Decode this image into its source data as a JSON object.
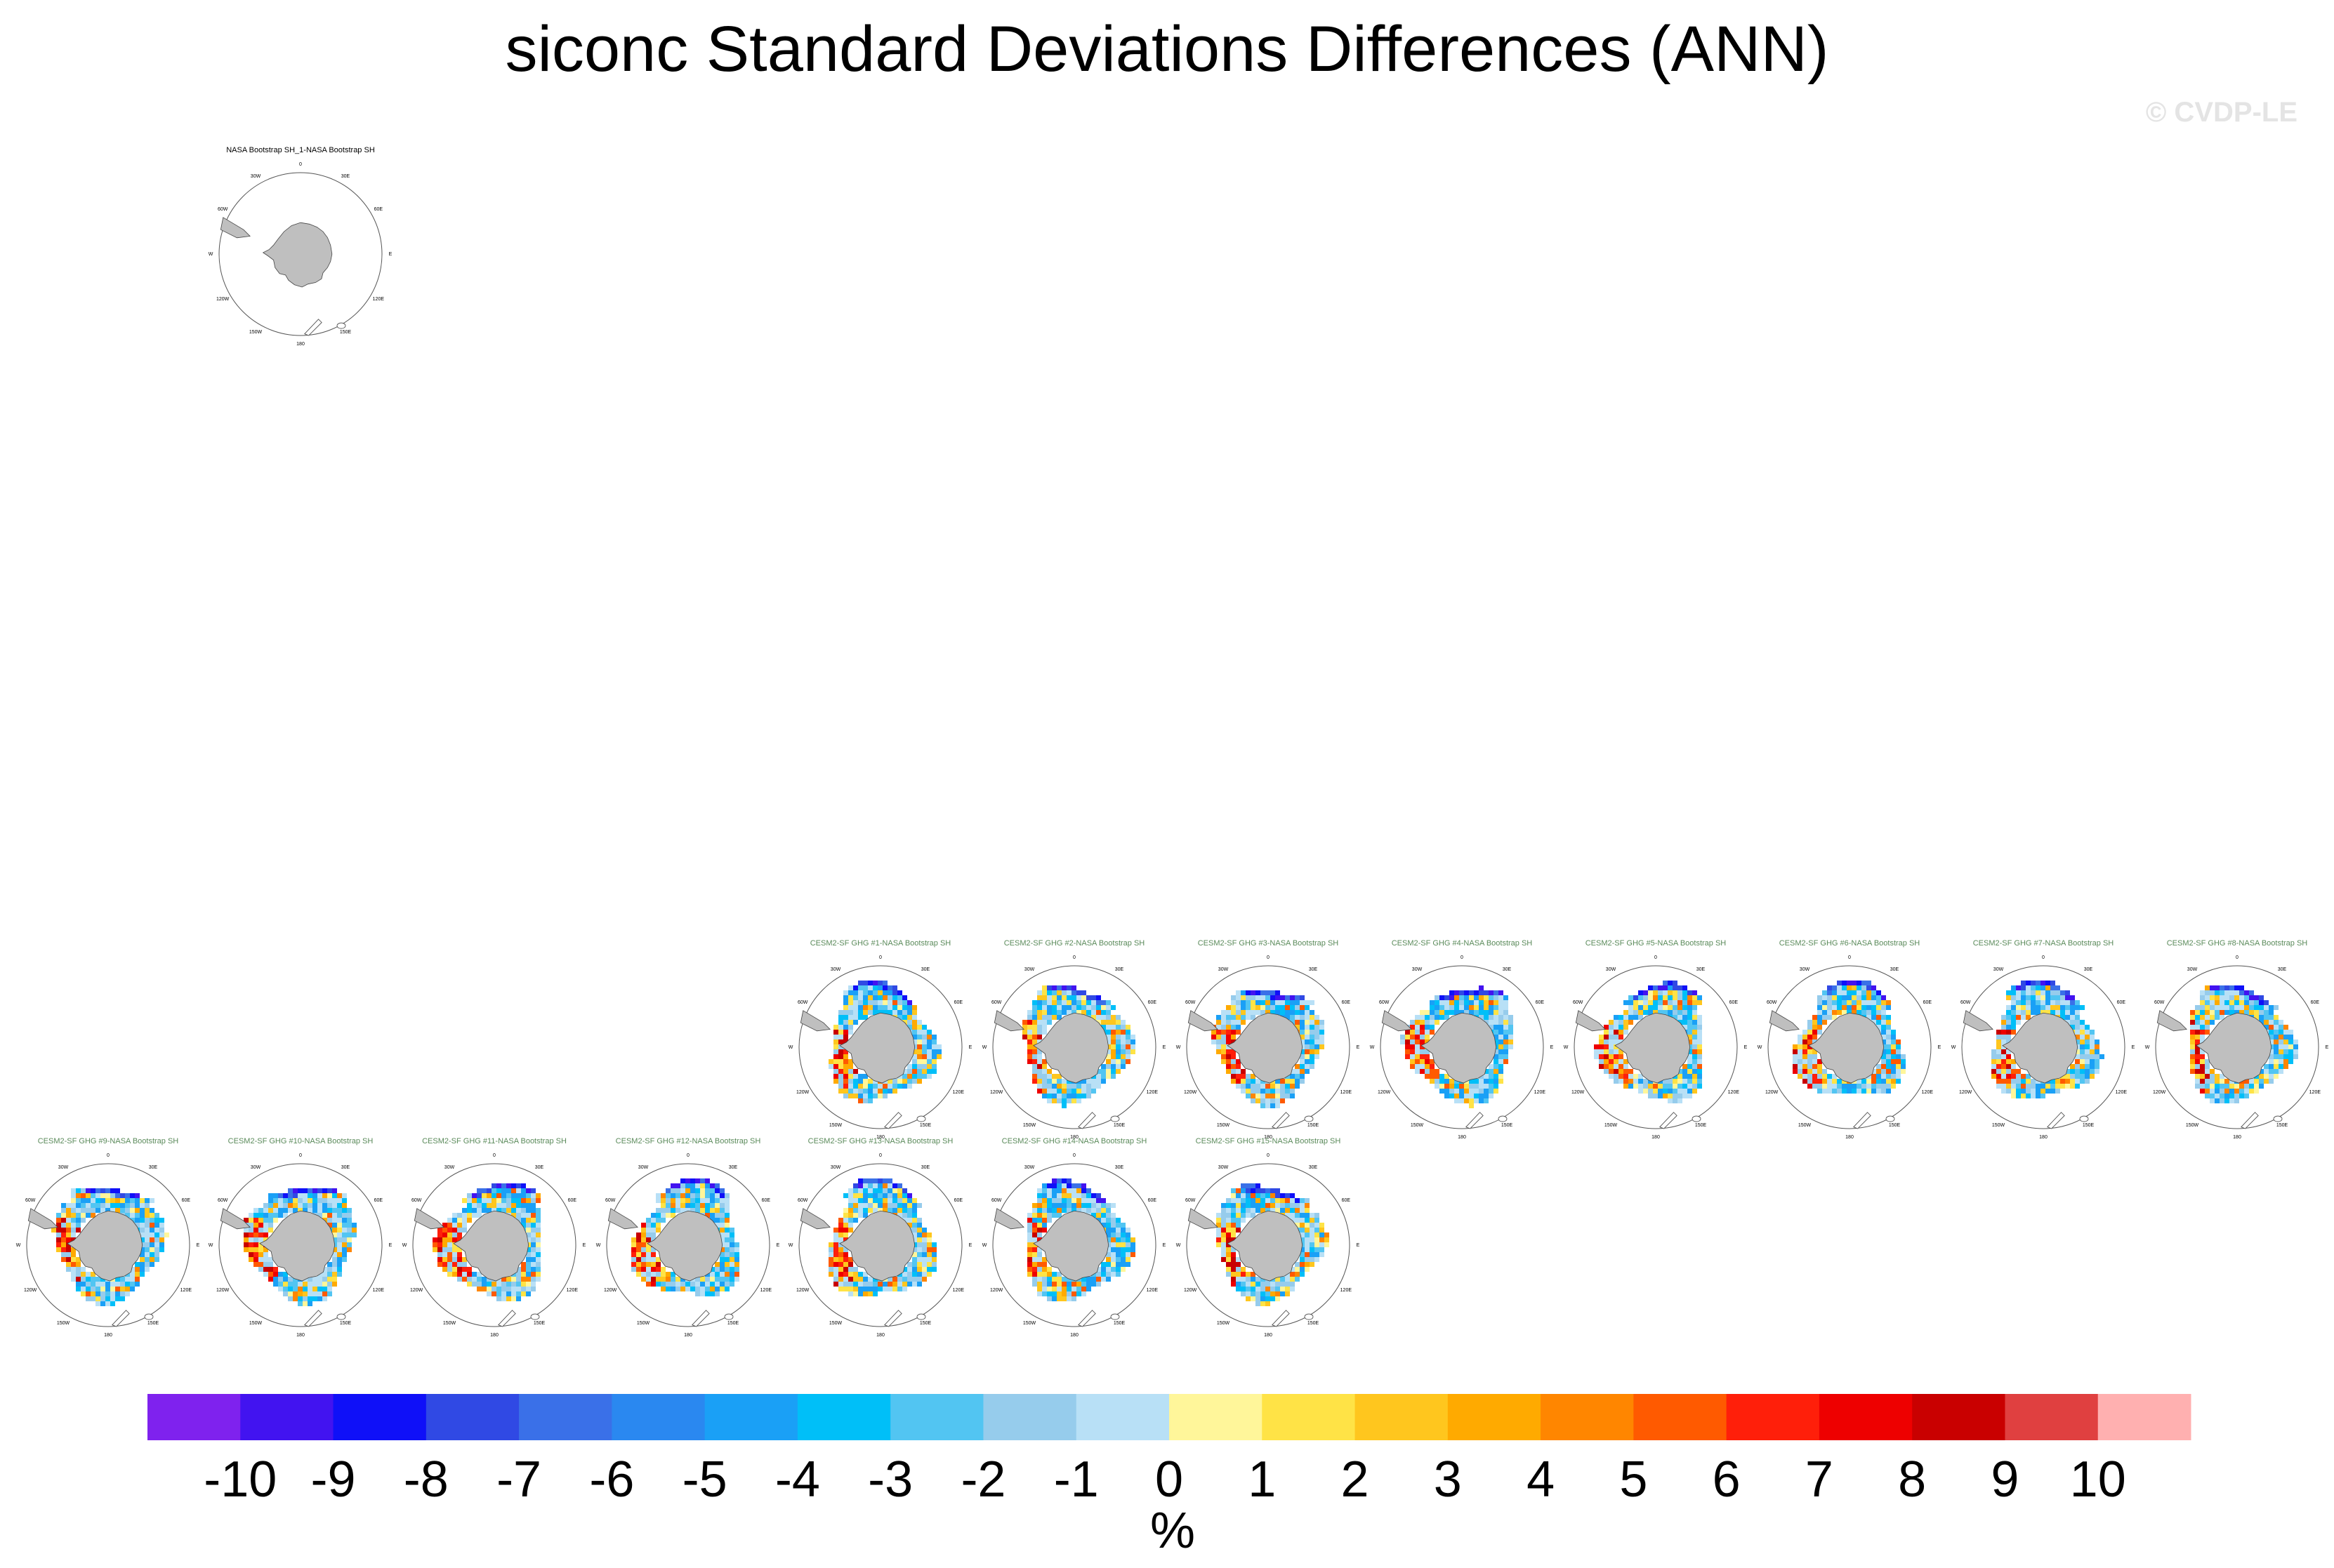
{
  "title": "siconc Standard Deviations Differences (ANN)",
  "watermark": "© CVDP-LE",
  "lon_labels": [
    "0",
    "30E",
    "60E",
    "E",
    "120E",
    "150E",
    "180",
    "150W",
    "120W",
    "W",
    "60W",
    "30W"
  ],
  "chart_data": {
    "type": "heatmap",
    "title": "siconc Standard Deviations Differences (ANN)",
    "projection": "polar stereographic, Southern Hemisphere",
    "panels": [
      {
        "name": "NASA Bootstrap SH_1-NASA Bootstrap SH",
        "kind": "observation"
      },
      {
        "name": "CESM2-SF GHG #1-NASA Bootstrap SH",
        "kind": "model"
      },
      {
        "name": "CESM2-SF GHG #2-NASA Bootstrap SH",
        "kind": "model"
      },
      {
        "name": "CESM2-SF GHG #3-NASA Bootstrap SH",
        "kind": "model"
      },
      {
        "name": "CESM2-SF GHG #4-NASA Bootstrap SH",
        "kind": "model"
      },
      {
        "name": "CESM2-SF GHG #5-NASA Bootstrap SH",
        "kind": "model"
      },
      {
        "name": "CESM2-SF GHG #6-NASA Bootstrap SH",
        "kind": "model"
      },
      {
        "name": "CESM2-SF GHG #7-NASA Bootstrap SH",
        "kind": "model"
      },
      {
        "name": "CESM2-SF GHG #8-NASA Bootstrap SH",
        "kind": "model"
      },
      {
        "name": "CESM2-SF GHG #9-NASA Bootstrap SH",
        "kind": "model"
      },
      {
        "name": "CESM2-SF GHG #10-NASA Bootstrap SH",
        "kind": "model"
      },
      {
        "name": "CESM2-SF GHG #11-NASA Bootstrap SH",
        "kind": "model"
      },
      {
        "name": "CESM2-SF GHG #12-NASA Bootstrap SH",
        "kind": "model"
      },
      {
        "name": "CESM2-SF GHG #13-NASA Bootstrap SH",
        "kind": "model"
      },
      {
        "name": "CESM2-SF GHG #14-NASA Bootstrap SH",
        "kind": "model"
      },
      {
        "name": "CESM2-SF GHG #15-NASA Bootstrap SH",
        "kind": "model"
      }
    ],
    "colorbar": {
      "unit": "%",
      "tick_labels": [
        "-10",
        "-9",
        "-8",
        "-7",
        "-6",
        "-5",
        "-4",
        "-3",
        "-2",
        "-1",
        "0",
        "1",
        "2",
        "3",
        "4",
        "5",
        "6",
        "7",
        "8",
        "9",
        "10"
      ],
      "colors": [
        "#7f22ee",
        "#4213f0",
        "#0f10f8",
        "#3049e4",
        "#3a70e8",
        "#2a88f0",
        "#1aa0f6",
        "#00bff8",
        "#52c5f2",
        "#96ccec",
        "#b8e0f6",
        "#fff69a",
        "#ffe346",
        "#ffc61e",
        "#ffaa00",
        "#ff8600",
        "#ff5a00",
        "#ff1f0a",
        "#ee0000",
        "#c90000",
        "#e04040",
        "#ffb0b0"
      ]
    }
  }
}
